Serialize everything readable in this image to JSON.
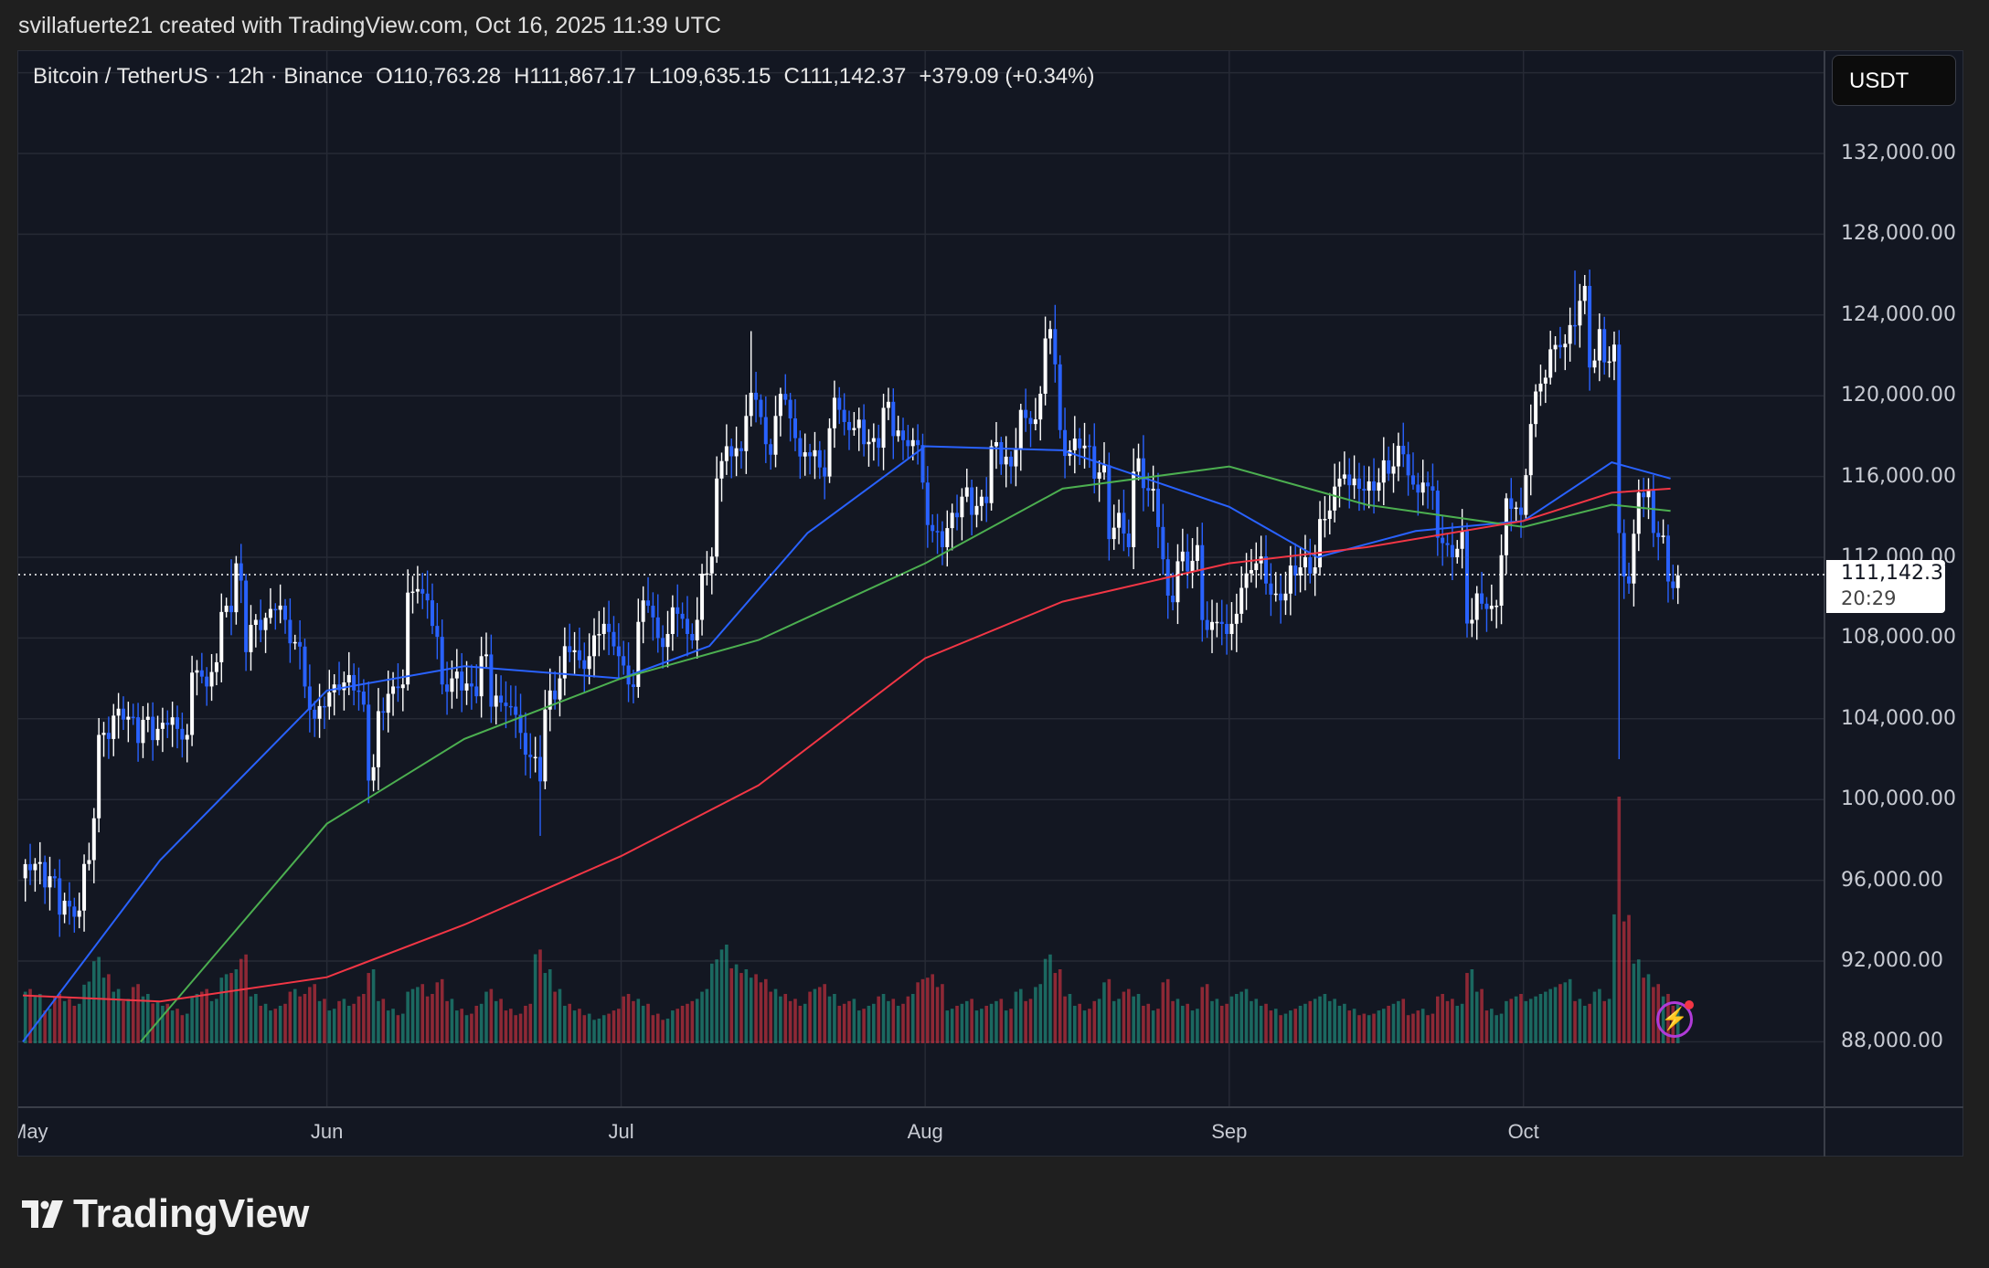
{
  "credit": "svillafuerte21 created with TradingView.com, Oct 16, 2025 11:39 UTC",
  "legend": {
    "symbol": "Bitcoin / TetherUS · 12h · Binance",
    "open": "O110,763.28",
    "high": "H111,867.17",
    "low": "L109,635.15",
    "close": "C111,142.37",
    "change": "+379.09 (+0.34%)"
  },
  "currency_button": "USDT",
  "last_price": {
    "label": "111,142.37",
    "countdown": "20:29",
    "value": 111142.37
  },
  "logo": "TradingView",
  "colors": {
    "up": "#ffffff",
    "down": "#2962ff",
    "vol_up": "#22ab94",
    "vol_down": "#f23645",
    "ma_fast": "#2962ff",
    "ma_mid": "#4caf50",
    "ma_slow": "#f23645",
    "bg": "#131722"
  },
  "icons": {
    "alert": "lightning-icon",
    "logo": "tradingview-logo-icon"
  },
  "chart_data": {
    "type": "candlestick",
    "interval": "12h",
    "y_axis": {
      "range": [
        88000,
        136000
      ],
      "ticks": [
        "132,000.00",
        "128,000.00",
        "124,000.00",
        "120,000.00",
        "116,000.00",
        "112,000.00",
        "108,000.00",
        "104,000.00",
        "100,000.00",
        "96,000.00",
        "92,000.00",
        "88,000.00"
      ],
      "tick_values": [
        132000,
        128000,
        124000,
        120000,
        116000,
        112000,
        108000,
        104000,
        100000,
        96000,
        92000,
        88000
      ]
    },
    "x_axis": {
      "start": "2025-05-01",
      "end": "2025-10-16",
      "ticks": [
        {
          "label": "May",
          "date": "2025-05-01"
        },
        {
          "label": "Jun",
          "date": "2025-06-01"
        },
        {
          "label": "Jul",
          "date": "2025-07-01"
        },
        {
          "label": "Aug",
          "date": "2025-08-01"
        },
        {
          "label": "Sep",
          "date": "2025-09-01"
        },
        {
          "label": "Oct",
          "date": "2025-10-01"
        }
      ]
    },
    "grid": true,
    "daily_close_thousands": [
      96.5,
      96.9,
      96.2,
      94.3,
      94.7,
      94.5,
      97.0,
      103.2,
      103.0,
      104.5,
      104.1,
      102.8,
      104.1,
      103.5,
      103.7,
      103.5,
      103.2,
      106.4,
      105.6,
      106.8,
      109.6,
      111.7,
      107.3,
      108.9,
      109.0,
      109.4,
      108.9,
      107.8,
      105.6,
      104.0,
      104.6,
      105.7,
      105.8,
      105.4,
      104.7,
      101.6,
      104.3,
      105.6,
      105.7,
      110.3,
      110.2,
      108.6,
      105.7,
      106.0,
      105.4,
      105.6,
      107.1,
      104.6,
      104.8,
      104.6,
      103.3,
      102.1,
      100.9,
      105.4,
      106.0,
      107.3,
      106.9,
      107.1,
      108.2,
      108.3,
      107.1,
      105.7,
      108.8,
      109.6,
      108.0,
      108.2,
      109.2,
      108.2,
      108.9,
      111.2,
      115.9,
      117.5,
      117.4,
      119.0,
      119.8,
      117.6,
      119.0,
      119.8,
      117.9,
      117.2,
      117.3,
      116.0,
      119.9,
      118.7,
      118.4,
      117.6,
      117.9,
      119.4,
      118.0,
      117.8,
      117.8,
      115.7,
      113.3,
      112.5,
      114.2,
      115.0,
      114.1,
      115.0,
      117.5,
      116.6,
      116.5,
      119.3,
      118.6,
      120.1,
      123.3,
      118.3,
      117.3,
      117.4,
      117.5,
      116.2,
      112.9,
      114.2,
      112.5,
      116.9,
      115.3,
      113.5,
      110.1,
      111.8,
      111.3,
      112.6,
      108.4,
      108.8,
      108.2,
      109.2,
      111.2,
      111.7,
      110.7,
      110.2,
      110.2,
      111.1,
      112.0,
      111.5,
      113.9,
      115.5,
      116.1,
      115.9,
      115.3,
      115.3,
      116.8,
      116.5,
      117.1,
      115.6,
      115.7,
      115.3,
      112.7,
      112.0,
      113.3,
      108.9,
      109.7,
      109.6,
      112.1,
      114.4,
      114.1,
      118.6,
      120.6,
      122.3,
      122.4,
      123.5,
      124.7,
      121.4,
      123.3,
      121.7,
      113.2,
      110.7,
      115.2,
      115.3,
      113.0,
      110.8,
      111.1
    ],
    "wick_extremes": [
      {
        "date": "2025-05-22",
        "high": 111900
      },
      {
        "date": "2025-06-22",
        "low": 98200
      },
      {
        "date": "2025-07-14",
        "high": 123200
      },
      {
        "date": "2025-08-14",
        "high": 124500
      },
      {
        "date": "2025-09-01",
        "low": 107300
      },
      {
        "date": "2025-10-06",
        "high": 126200
      },
      {
        "date": "2025-10-10",
        "low": 102000
      }
    ],
    "daily_volume_relative": [
      22,
      20,
      14,
      20,
      18,
      16,
      25,
      35,
      28,
      22,
      18,
      24,
      20,
      17,
      16,
      14,
      12,
      20,
      22,
      18,
      28,
      30,
      36,
      20,
      16,
      14,
      16,
      22,
      20,
      24,
      18,
      14,
      18,
      16,
      20,
      30,
      18,
      14,
      12,
      22,
      24,
      20,
      26,
      18,
      14,
      12,
      16,
      22,
      18,
      14,
      12,
      16,
      38,
      30,
      22,
      16,
      14,
      12,
      10,
      12,
      14,
      20,
      18,
      16,
      12,
      10,
      14,
      16,
      18,
      22,
      34,
      40,
      32,
      30,
      28,
      26,
      22,
      20,
      18,
      16,
      22,
      24,
      20,
      16,
      18,
      14,
      16,
      20,
      18,
      16,
      20,
      26,
      28,
      24,
      14,
      16,
      18,
      14,
      16,
      18,
      14,
      22,
      18,
      24,
      36,
      30,
      20,
      16,
      14,
      18,
      26,
      18,
      22,
      20,
      16,
      14,
      26,
      18,
      16,
      14,
      24,
      18,
      16,
      20,
      22,
      18,
      16,
      14,
      12,
      14,
      16,
      18,
      20,
      18,
      16,
      14,
      12,
      12,
      14,
      16,
      18,
      12,
      14,
      12,
      20,
      18,
      16,
      30,
      22,
      14,
      12,
      18,
      20,
      18,
      20,
      22,
      24,
      26,
      18,
      16,
      22,
      18,
      100,
      52,
      34,
      28,
      24,
      20,
      16
    ],
    "series": [
      {
        "name": "",
        "type": "ma",
        "color_key": "ma_fast",
        "points": [
          [
            "2025-05-01",
            88000
          ],
          [
            "2025-05-15",
            97000
          ],
          [
            "2025-06-01",
            105400
          ],
          [
            "2025-06-15",
            106600
          ],
          [
            "2025-07-01",
            106000
          ],
          [
            "2025-07-10",
            107600
          ],
          [
            "2025-07-20",
            113200
          ],
          [
            "2025-08-01",
            117500
          ],
          [
            "2025-08-15",
            117300
          ],
          [
            "2025-09-01",
            114500
          ],
          [
            "2025-09-10",
            112000
          ],
          [
            "2025-09-20",
            113300
          ],
          [
            "2025-10-01",
            113800
          ],
          [
            "2025-10-10",
            116700
          ],
          [
            "2025-10-16",
            115900
          ]
        ]
      },
      {
        "name": "",
        "type": "ma",
        "color_key": "ma_mid",
        "points": [
          [
            "2025-05-13",
            88000
          ],
          [
            "2025-06-01",
            98800
          ],
          [
            "2025-06-15",
            103000
          ],
          [
            "2025-07-01",
            106000
          ],
          [
            "2025-07-15",
            107900
          ],
          [
            "2025-08-01",
            111700
          ],
          [
            "2025-08-15",
            115400
          ],
          [
            "2025-09-01",
            116500
          ],
          [
            "2025-09-15",
            114600
          ],
          [
            "2025-10-01",
            113500
          ],
          [
            "2025-10-10",
            114600
          ],
          [
            "2025-10-16",
            114300
          ]
        ]
      },
      {
        "name": "",
        "type": "ma",
        "color_key": "ma_slow",
        "points": [
          [
            "2025-05-01",
            90300
          ],
          [
            "2025-05-15",
            90000
          ],
          [
            "2025-06-01",
            91200
          ],
          [
            "2025-06-15",
            93800
          ],
          [
            "2025-07-01",
            97200
          ],
          [
            "2025-07-15",
            100700
          ],
          [
            "2025-08-01",
            107000
          ],
          [
            "2025-08-15",
            109800
          ],
          [
            "2025-09-01",
            111700
          ],
          [
            "2025-09-15",
            112500
          ],
          [
            "2025-10-01",
            113800
          ],
          [
            "2025-10-10",
            115200
          ],
          [
            "2025-10-16",
            115400
          ]
        ]
      }
    ]
  }
}
